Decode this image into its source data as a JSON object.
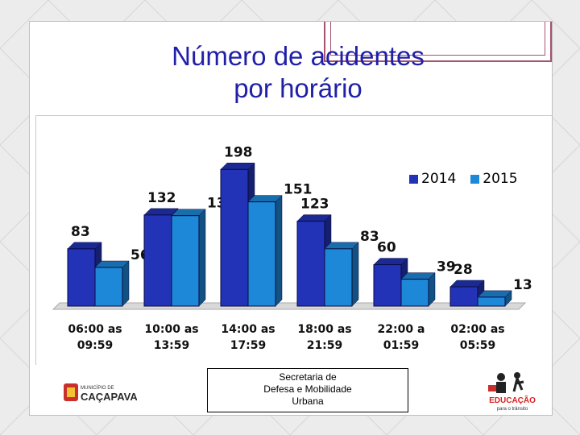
{
  "title_line1": "Número de acidentes",
  "title_line2": "por horário",
  "footer": {
    "line1": "Secretaria de",
    "line2": "Defesa e Mobilidade",
    "line3": "Urbana"
  },
  "logos": {
    "left_text_small": "MUNICÍPIO DE",
    "left_text_big": "CAÇAPAVA",
    "right_text_big": "EDUCAÇÃO",
    "right_text_small": "para o trânsito"
  },
  "colors": {
    "title": "#1f1fa8",
    "series_2014": "#2233b8",
    "series_2015": "#1e88d8"
  },
  "chart_data": {
    "type": "bar",
    "categories": [
      "06:00 as\n09:59",
      "10:00 as\n13:59",
      "14:00 as\n17:59",
      "18:00 as\n21:59",
      "22:00 a\n01:59",
      "02:00 as\n05:59"
    ],
    "series": [
      {
        "name": "2014",
        "values": [
          83,
          132,
          198,
          123,
          60,
          28
        ]
      },
      {
        "name": "2015",
        "values": [
          56,
          131,
          151,
          83,
          39,
          13
        ]
      }
    ],
    "ylim": [
      0,
      210
    ],
    "grid": false,
    "legend": "top-right"
  }
}
